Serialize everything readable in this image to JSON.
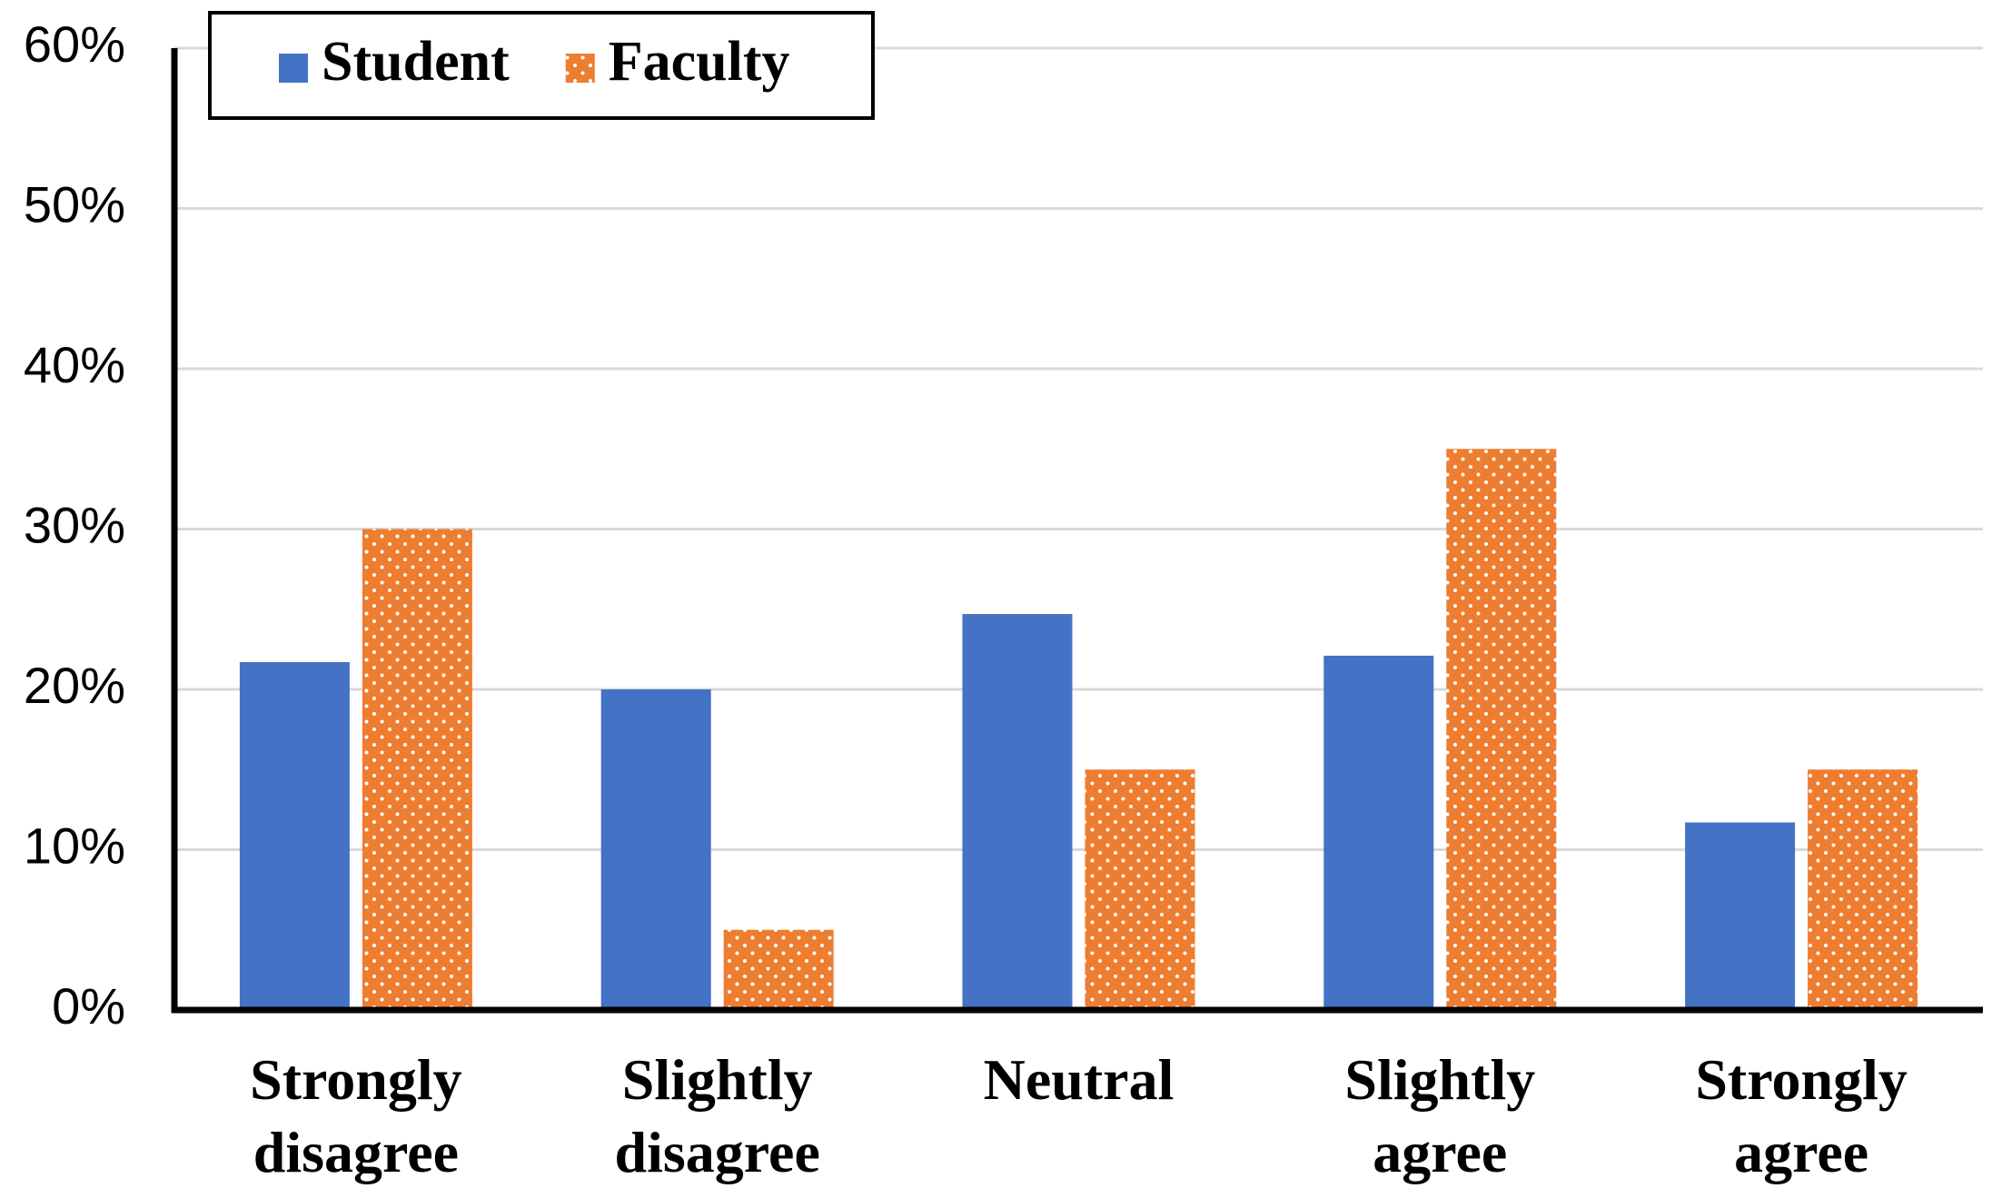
{
  "chart_data": {
    "type": "bar",
    "categories": [
      [
        "Strongly",
        "disagree"
      ],
      [
        "Slightly",
        "disagree"
      ],
      [
        "Neutral"
      ],
      [
        "Slightly",
        "agree"
      ],
      [
        "Strongly",
        "agree"
      ]
    ],
    "series": [
      {
        "name": "Student",
        "color": "#4472c4",
        "pattern": "solid",
        "values": [
          21.7,
          20,
          24.7,
          22.1,
          11.7
        ]
      },
      {
        "name": "Faculty",
        "color": "#ed7d31",
        "pattern": "dots",
        "values": [
          30,
          5,
          15,
          35,
          15
        ]
      }
    ],
    "ylim": [
      0,
      60
    ],
    "yticks": [
      {
        "value": 0,
        "label": "0%"
      },
      {
        "value": 10,
        "label": "10%"
      },
      {
        "value": 20,
        "label": "20%"
      },
      {
        "value": 30,
        "label": "30%"
      },
      {
        "value": 40,
        "label": "40%"
      },
      {
        "value": 50,
        "label": "50%"
      },
      {
        "value": 60,
        "label": "60%"
      }
    ],
    "grid": true,
    "legend": "top-left"
  }
}
